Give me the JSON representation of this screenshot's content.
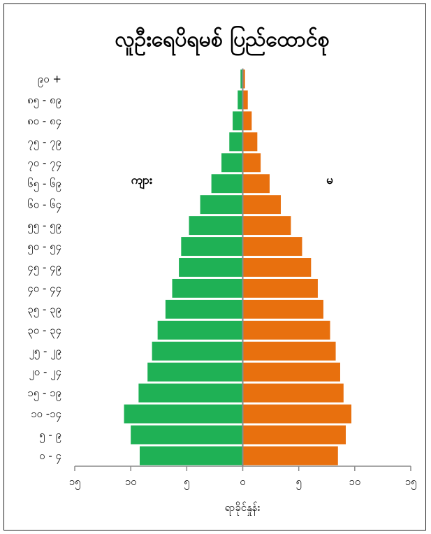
{
  "chart_data": {
    "type": "bar",
    "title": "လူဦးရေပိရမစ် ပြည်ထောင်စု",
    "xlabel": "ရာခိုင်နှုန်း",
    "ylabel": "",
    "categories": [
      "၀ - ၄",
      "၅ - ၉",
      "၁၀ -၁၄",
      "၁၅ - ၁၉",
      "၂၀ - ၂၄",
      "၂၅ - ၂၉",
      "၃၀ - ၃၄",
      "၃၅ - ၃၉",
      "၄၀ - ၄၄",
      "၄၅ - ၄၉",
      "၅၀ - ၅၄",
      "၅၅ - ၅၉",
      "၆၀ - ၆၄",
      "၆၅ - ၆၉",
      "၇၀ - ၇၄",
      "၇၅ - ၇၉",
      "၈၀ - ၈၄",
      "၈၅ - ၈၉",
      "၉၀ +"
    ],
    "series": [
      {
        "name": "ကျား",
        "color": "#1fb155",
        "values": [
          9.2,
          10.0,
          10.6,
          9.3,
          8.5,
          8.1,
          7.6,
          6.9,
          6.3,
          5.7,
          5.5,
          4.8,
          3.8,
          2.8,
          1.9,
          1.2,
          0.9,
          0.45,
          0.2
        ]
      },
      {
        "name": "မ",
        "color": "#e8700e",
        "values": [
          8.5,
          9.2,
          9.7,
          9.0,
          8.7,
          8.3,
          7.8,
          7.2,
          6.7,
          6.1,
          5.3,
          4.3,
          3.4,
          2.4,
          1.6,
          1.3,
          0.8,
          0.45,
          0.2
        ]
      }
    ],
    "xlim": [
      -15,
      15
    ],
    "x_ticks": [
      {
        "value": -15,
        "label": "၁၅"
      },
      {
        "value": -10,
        "label": "၁၀"
      },
      {
        "value": -5,
        "label": "၅"
      },
      {
        "value": 0,
        "label": "၀"
      },
      {
        "value": 5,
        "label": "၅"
      },
      {
        "value": 10,
        "label": "၁၀"
      },
      {
        "value": 15,
        "label": "၁၅"
      }
    ],
    "grid": false,
    "legend": "none"
  }
}
